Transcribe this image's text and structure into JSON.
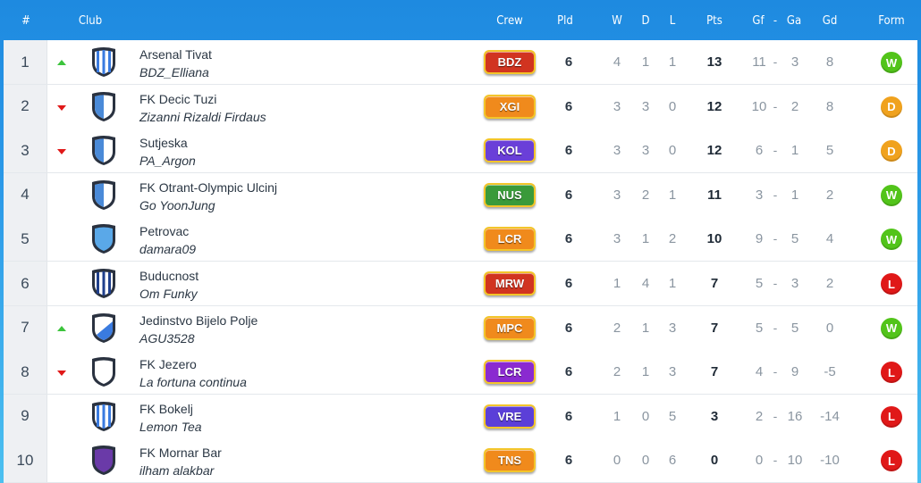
{
  "table": {
    "headers": {
      "rank": "#",
      "club": "Club",
      "crew": "Crew",
      "pld": "Pld",
      "w": "W",
      "d": "D",
      "l": "L",
      "pts": "Pts",
      "gf": "Gf",
      "sep1": "-",
      "ga": "Ga",
      "gd": "Gd",
      "form": "Form"
    },
    "rows": [
      {
        "rank": "1",
        "trend": "up",
        "crest": "stripes-blue",
        "club": "Arsenal Tivat",
        "manager": "BDZ_Elliana",
        "crew": "BDZ",
        "crew_color": "#d13420",
        "pld": "6",
        "w": "4",
        "d": "1",
        "l": "1",
        "pts": "13",
        "gf": "11",
        "dash": "-",
        "ga": "3",
        "gd": "8",
        "form": "W",
        "form_color": "#52c41a"
      },
      {
        "rank": "2",
        "trend": "down",
        "crest": "split-blue",
        "club": "FK Decic Tuzi",
        "manager": "Zizanni Rizaldi Firdaus",
        "crew": "XGI",
        "crew_color": "#f08a1c",
        "pld": "6",
        "w": "3",
        "d": "3",
        "l": "0",
        "pts": "12",
        "gf": "10",
        "dash": "-",
        "ga": "2",
        "gd": "8",
        "form": "D",
        "form_color": "#f0a21e"
      },
      {
        "rank": "3",
        "trend": "down",
        "crest": "split-blue",
        "club": "Sutjeska",
        "manager": "PA_Argon",
        "crew": "KOL",
        "crew_color": "#6a3fd8",
        "pld": "6",
        "w": "3",
        "d": "3",
        "l": "0",
        "pts": "12",
        "gf": "6",
        "dash": "-",
        "ga": "1",
        "gd": "5",
        "form": "D",
        "form_color": "#f0a21e"
      },
      {
        "rank": "4",
        "trend": "none",
        "crest": "split-blue",
        "club": "FK Otrant-Olympic Ulcinj",
        "manager": "Go YoonJung",
        "crew": "NUS",
        "crew_color": "#3a9a3a",
        "pld": "6",
        "w": "3",
        "d": "2",
        "l": "1",
        "pts": "11",
        "gf": "3",
        "dash": "-",
        "ga": "1",
        "gd": "2",
        "form": "W",
        "form_color": "#52c41a"
      },
      {
        "rank": "5",
        "trend": "none",
        "crest": "solid-blue",
        "club": "Petrovac",
        "manager": "damara09",
        "crew": "LCR",
        "crew_color": "#f08a1c",
        "pld": "6",
        "w": "3",
        "d": "1",
        "l": "2",
        "pts": "10",
        "gf": "9",
        "dash": "-",
        "ga": "5",
        "gd": "4",
        "form": "W",
        "form_color": "#52c41a"
      },
      {
        "rank": "6",
        "trend": "none",
        "crest": "stripes-navy",
        "club": "Buducnost",
        "manager": "Om Funky",
        "crew": "MRW",
        "crew_color": "#d13420",
        "pld": "6",
        "w": "1",
        "d": "4",
        "l": "1",
        "pts": "7",
        "gf": "5",
        "dash": "-",
        "ga": "3",
        "gd": "2",
        "form": "L",
        "form_color": "#e01818"
      },
      {
        "rank": "7",
        "trend": "up",
        "crest": "diagonal-blue",
        "club": "Jedinstvo Bijelo Polje",
        "manager": "AGU3528",
        "crew": "MPC",
        "crew_color": "#f08a1c",
        "pld": "6",
        "w": "2",
        "d": "1",
        "l": "3",
        "pts": "7",
        "gf": "5",
        "dash": "-",
        "ga": "5",
        "gd": "0",
        "form": "W",
        "form_color": "#52c41a"
      },
      {
        "rank": "8",
        "trend": "down",
        "crest": "plain-white",
        "club": "FK Jezero",
        "manager": "La fortuna continua",
        "crew": "LCR",
        "crew_color": "#8a2ad0",
        "pld": "6",
        "w": "2",
        "d": "1",
        "l": "3",
        "pts": "7",
        "gf": "4",
        "dash": "-",
        "ga": "9",
        "gd": "-5",
        "form": "L",
        "form_color": "#e01818"
      },
      {
        "rank": "9",
        "trend": "none",
        "crest": "stripes-blue",
        "club": "FK Bokelj",
        "manager": "Lemon Tea",
        "crew": "VRE",
        "crew_color": "#5b3fd8",
        "pld": "6",
        "w": "1",
        "d": "0",
        "l": "5",
        "pts": "3",
        "gf": "2",
        "dash": "-",
        "ga": "16",
        "gd": "-14",
        "form": "L",
        "form_color": "#e01818"
      },
      {
        "rank": "10",
        "trend": "none",
        "crest": "solid-purple",
        "club": "FK Mornar Bar",
        "manager": "ilham alakbar",
        "crew": "TNS",
        "crew_color": "#f08a1c",
        "pld": "6",
        "w": "0",
        "d": "0",
        "l": "6",
        "pts": "0",
        "gf": "0",
        "dash": "-",
        "ga": "10",
        "gd": "-10",
        "form": "L",
        "form_color": "#e01818"
      }
    ]
  }
}
